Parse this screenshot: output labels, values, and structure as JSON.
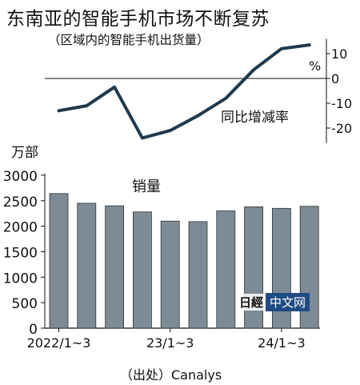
{
  "header": {
    "title": "东南亚的智能手机市场不断复苏",
    "subtitle": "（区域内的智能手机出货量）"
  },
  "source": "（出处）Canalys",
  "watermark": {
    "logo": "日經",
    "text": "中文网"
  },
  "chart_data": [
    {
      "type": "line",
      "series": [
        {
          "name": "同比增减率",
          "values": [
            -13,
            -11,
            -3.5,
            -24,
            -21,
            -15,
            -8,
            3.5,
            12,
            13.5
          ]
        }
      ],
      "ylim": [
        -27,
        17
      ],
      "yticks": [
        "10",
        "0",
        "-10",
        "-20"
      ],
      "yunit": "%",
      "color": "#1f3a4d"
    },
    {
      "type": "bar",
      "categories": [
        "2022/1~3",
        "",
        "",
        "",
        "23/1~3",
        "",
        "",
        "",
        "24/1~3",
        ""
      ],
      "xticks": [
        "2022/1~3",
        "23/1~3",
        "24/1~3"
      ],
      "series": [
        {
          "name": "销量",
          "values": [
            2640,
            2450,
            2400,
            2280,
            2100,
            2090,
            2300,
            2380,
            2350,
            2390
          ]
        }
      ],
      "ylim": [
        0,
        3000
      ],
      "yticks": [
        "3000",
        "2500",
        "2000",
        "1500",
        "1000",
        "500",
        "0"
      ],
      "ylabel": "万部",
      "color": "#7c8b95"
    }
  ]
}
